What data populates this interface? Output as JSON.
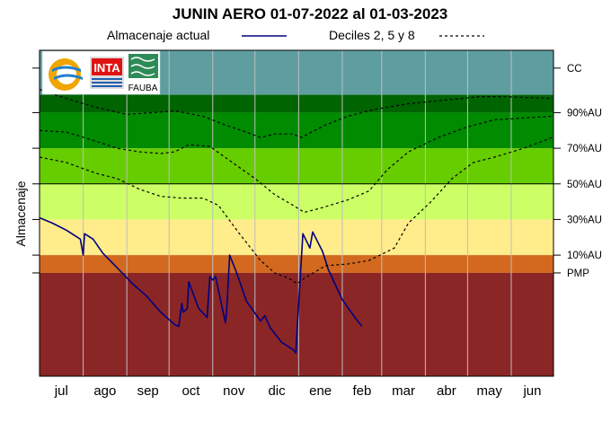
{
  "chart_data": {
    "type": "line",
    "title": "JUNIN AERO 01-07-2022 al 01-03-2023",
    "ylabel": "Almacenaje",
    "xlabel": "",
    "x_range": [
      "2022-07-01",
      "2023-06-30"
    ],
    "months": [
      "jul",
      "ago",
      "sep",
      "oct",
      "nov",
      "dic",
      "ene",
      "feb",
      "mar",
      "abr",
      "may",
      "jun"
    ],
    "legend": {
      "actual_label": "Almacenaje actual",
      "deciles_label": "Deciles 2, 5 y 8"
    },
    "levels": [
      {
        "label": "CC",
        "value": 115
      },
      {
        "label": "90%AU",
        "value": 90
      },
      {
        "label": "70%AU",
        "value": 70
      },
      {
        "label": "50%AU",
        "value": 50
      },
      {
        "label": "30%AU",
        "value": 30
      },
      {
        "label": "10%AU",
        "value": 10
      },
      {
        "label": "PMP",
        "value": 0
      }
    ],
    "ylim": [
      -58,
      125
    ],
    "bands": [
      {
        "from": 100,
        "to": 125,
        "color": "#5f9ea0"
      },
      {
        "from": 90,
        "to": 100,
        "color": "#006400"
      },
      {
        "from": 70,
        "to": 90,
        "color": "#008b00"
      },
      {
        "from": 50,
        "to": 70,
        "color": "#66cd00"
      },
      {
        "from": 30,
        "to": 50,
        "color": "#ccff66"
      },
      {
        "from": 10,
        "to": 30,
        "color": "#ffec8b"
      },
      {
        "from": 0,
        "to": 10,
        "color": "#d2691e"
      },
      {
        "from": -58,
        "to": 0,
        "color": "#8b2626"
      }
    ],
    "series": [
      {
        "name": "Almacenaje actual",
        "color": "#000080",
        "points": [
          [
            "2022-07-01",
            31
          ],
          [
            "2022-07-10",
            28
          ],
          [
            "2022-07-20",
            24
          ],
          [
            "2022-07-30",
            19
          ],
          [
            "2022-08-01",
            10
          ],
          [
            "2022-08-02",
            22
          ],
          [
            "2022-08-08",
            19
          ],
          [
            "2022-08-15",
            11
          ],
          [
            "2022-08-25",
            3
          ],
          [
            "2022-09-05",
            -6
          ],
          [
            "2022-09-15",
            -13
          ],
          [
            "2022-09-25",
            -22
          ],
          [
            "2022-10-05",
            -29
          ],
          [
            "2022-10-08",
            -30
          ],
          [
            "2022-10-10",
            -17
          ],
          [
            "2022-10-11",
            -22
          ],
          [
            "2022-10-14",
            -20
          ],
          [
            "2022-10-15",
            -5
          ],
          [
            "2022-10-22",
            -20
          ],
          [
            "2022-10-28",
            -25
          ],
          [
            "2022-10-30",
            -2
          ],
          [
            "2022-11-01",
            -4
          ],
          [
            "2022-11-03",
            -2
          ],
          [
            "2022-11-10",
            -28
          ],
          [
            "2022-11-11",
            -20
          ],
          [
            "2022-11-13",
            10
          ],
          [
            "2022-11-18",
            0
          ],
          [
            "2022-11-25",
            -16
          ],
          [
            "2022-12-05",
            -27
          ],
          [
            "2022-12-08",
            -24
          ],
          [
            "2022-12-12",
            -31
          ],
          [
            "2022-12-20",
            -39
          ],
          [
            "2022-12-28",
            -43
          ],
          [
            "2022-12-30",
            -45
          ],
          [
            "2023-01-01",
            -17
          ],
          [
            "2023-01-04",
            22
          ],
          [
            "2023-01-09",
            14
          ],
          [
            "2023-01-11",
            23
          ],
          [
            "2023-01-18",
            12
          ],
          [
            "2023-01-22",
            2
          ],
          [
            "2023-02-01",
            -15
          ],
          [
            "2023-02-10",
            -25
          ],
          [
            "2023-02-15",
            -30
          ]
        ]
      },
      {
        "name": "Decil 8",
        "color": "#000000",
        "dashed": true,
        "points": [
          [
            "2022-07-01",
            103
          ],
          [
            "2022-07-20",
            98
          ],
          [
            "2022-08-10",
            93
          ],
          [
            "2022-09-01",
            89
          ],
          [
            "2022-09-20",
            90
          ],
          [
            "2022-10-05",
            91
          ],
          [
            "2022-10-25",
            88
          ],
          [
            "2022-11-10",
            83
          ],
          [
            "2022-11-25",
            79
          ],
          [
            "2022-12-05",
            76
          ],
          [
            "2022-12-15",
            78
          ],
          [
            "2022-12-28",
            78
          ],
          [
            "2023-01-03",
            76
          ],
          [
            "2023-01-10",
            79
          ],
          [
            "2023-01-20",
            83
          ],
          [
            "2023-02-05",
            88
          ],
          [
            "2023-02-25",
            92
          ],
          [
            "2023-03-20",
            95
          ],
          [
            "2023-04-15",
            97
          ],
          [
            "2023-05-10",
            99
          ],
          [
            "2023-05-25",
            99
          ],
          [
            "2023-06-30",
            98
          ]
        ]
      },
      {
        "name": "Decil 5",
        "color": "#000000",
        "dashed": true,
        "points": [
          [
            "2022-07-01",
            80
          ],
          [
            "2022-07-20",
            79
          ],
          [
            "2022-08-10",
            74
          ],
          [
            "2022-08-25",
            70
          ],
          [
            "2022-09-10",
            68
          ],
          [
            "2022-09-25",
            67
          ],
          [
            "2022-10-05",
            68
          ],
          [
            "2022-10-15",
            72
          ],
          [
            "2022-10-30",
            71
          ],
          [
            "2022-11-15",
            62
          ],
          [
            "2022-12-01",
            53
          ],
          [
            "2022-12-15",
            44
          ],
          [
            "2022-12-28",
            38
          ],
          [
            "2023-01-05",
            34
          ],
          [
            "2023-01-15",
            36
          ],
          [
            "2023-02-05",
            41
          ],
          [
            "2023-02-20",
            46
          ],
          [
            "2023-03-05",
            58
          ],
          [
            "2023-03-20",
            68
          ],
          [
            "2023-04-10",
            76
          ],
          [
            "2023-05-01",
            82
          ],
          [
            "2023-05-20",
            86
          ],
          [
            "2023-06-10",
            87
          ],
          [
            "2023-06-30",
            88
          ]
        ]
      },
      {
        "name": "Decil 2",
        "color": "#000000",
        "dashed": true,
        "points": [
          [
            "2022-07-01",
            65
          ],
          [
            "2022-07-20",
            62
          ],
          [
            "2022-08-10",
            56
          ],
          [
            "2022-08-25",
            53
          ],
          [
            "2022-09-10",
            47
          ],
          [
            "2022-09-25",
            43
          ],
          [
            "2022-10-10",
            42
          ],
          [
            "2022-10-25",
            42
          ],
          [
            "2022-11-05",
            38
          ],
          [
            "2022-11-20",
            22
          ],
          [
            "2022-12-05",
            7
          ],
          [
            "2022-12-15",
            0
          ],
          [
            "2022-12-25",
            -3
          ],
          [
            "2022-12-31",
            -6
          ],
          [
            "2023-01-05",
            -3
          ],
          [
            "2023-01-20",
            4
          ],
          [
            "2023-02-05",
            5
          ],
          [
            "2023-02-20",
            7
          ],
          [
            "2023-03-10",
            14
          ],
          [
            "2023-03-20",
            28
          ],
          [
            "2023-04-05",
            40
          ],
          [
            "2023-04-20",
            53
          ],
          [
            "2023-05-05",
            62
          ],
          [
            "2023-05-20",
            65
          ],
          [
            "2023-06-10",
            70
          ],
          [
            "2023-06-30",
            76
          ]
        ]
      }
    ],
    "grid": true,
    "legend_position": "top",
    "logos": [
      "CIH logo",
      "INTA",
      "FAUBA"
    ]
  }
}
